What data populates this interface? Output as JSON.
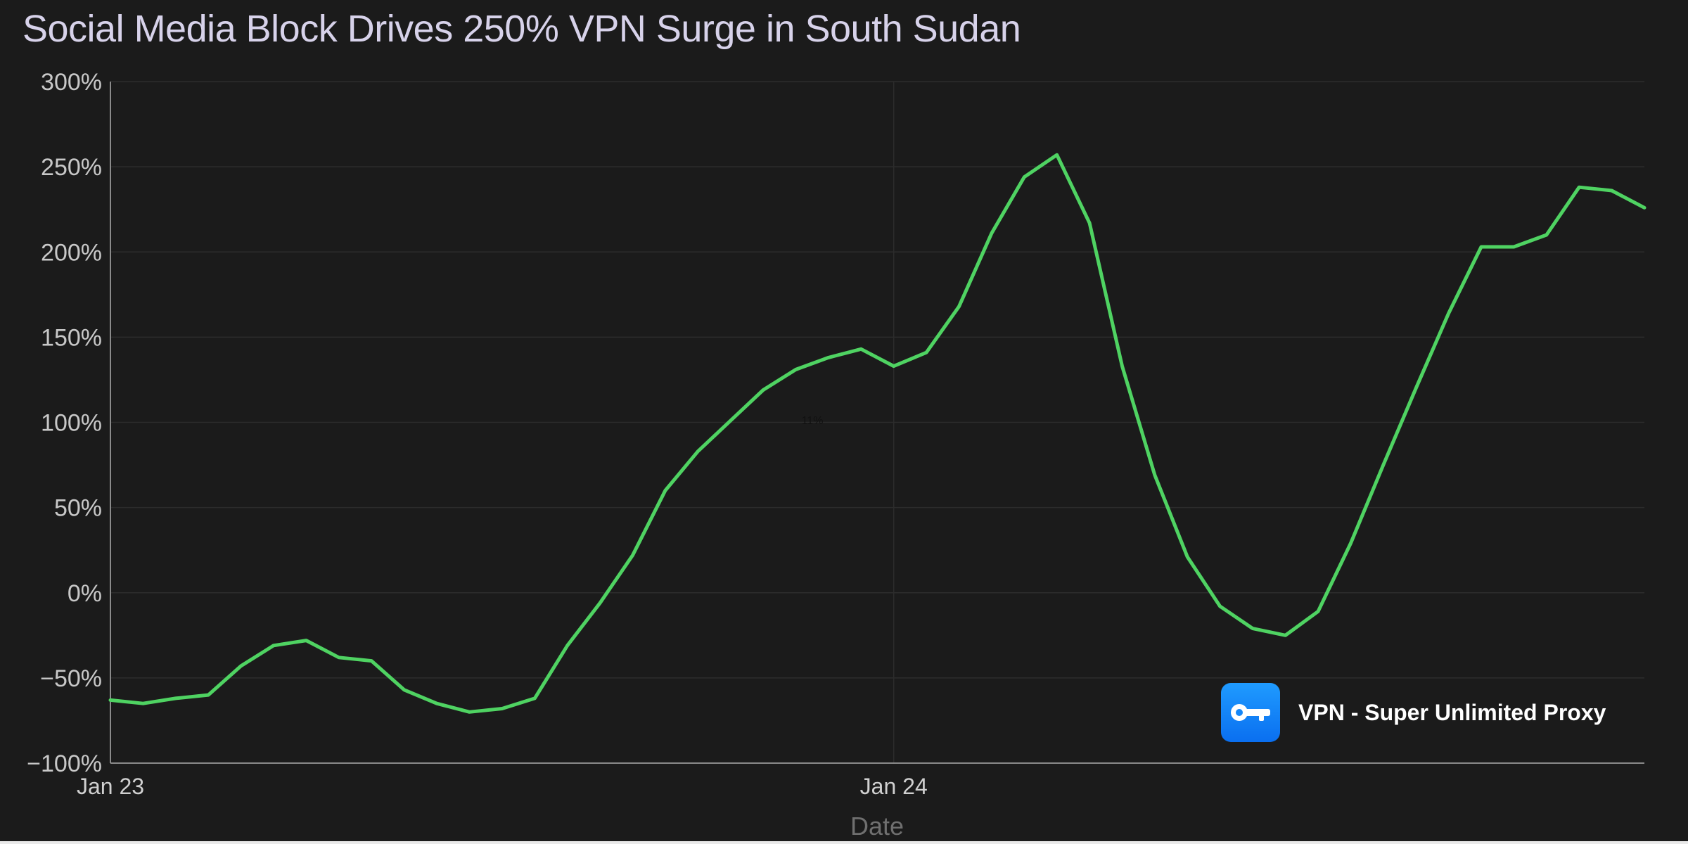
{
  "chart_data": {
    "type": "line",
    "title": "Social Media Block Drives 250% VPN Surge in South Sudan",
    "xlabel": "Date",
    "ylabel": "",
    "ylim": [
      -100,
      300
    ],
    "yticks": [
      -100,
      -50,
      0,
      50,
      100,
      150,
      200,
      250,
      300
    ],
    "ytick_labels": [
      "−100%",
      "−50%",
      "0%",
      "50%",
      "100%",
      "150%",
      "200%",
      "250%",
      "300%"
    ],
    "xticks": [
      {
        "label": "Jan 23",
        "x": 0
      },
      {
        "label": "Jan 24",
        "x": 24
      }
    ],
    "xlim": [
      0,
      47
    ],
    "grid": true,
    "annotation": "11%",
    "line_color": "#4fd362",
    "series": [
      {
        "values": [
          {
            "x": 0,
            "y": -63
          },
          {
            "x": 1,
            "y": -65
          },
          {
            "x": 2,
            "y": -62
          },
          {
            "x": 3,
            "y": -60
          },
          {
            "x": 4,
            "y": -43
          },
          {
            "x": 5,
            "y": -31
          },
          {
            "x": 6,
            "y": -28
          },
          {
            "x": 7,
            "y": -38
          },
          {
            "x": 8,
            "y": -40
          },
          {
            "x": 9,
            "y": -57
          },
          {
            "x": 10,
            "y": -65
          },
          {
            "x": 11,
            "y": -70
          },
          {
            "x": 12,
            "y": -68
          },
          {
            "x": 13,
            "y": -62
          },
          {
            "x": 14,
            "y": -31
          },
          {
            "x": 15,
            "y": -6
          },
          {
            "x": 16,
            "y": 22
          },
          {
            "x": 17,
            "y": 60
          },
          {
            "x": 18,
            "y": 83
          },
          {
            "x": 19,
            "y": 101
          },
          {
            "x": 20,
            "y": 119
          },
          {
            "x": 21,
            "y": 131
          },
          {
            "x": 22,
            "y": 138
          },
          {
            "x": 23,
            "y": 143
          },
          {
            "x": 24,
            "y": 133
          },
          {
            "x": 25,
            "y": 141
          },
          {
            "x": 26,
            "y": 168
          },
          {
            "x": 27,
            "y": 211
          },
          {
            "x": 28,
            "y": 244
          },
          {
            "x": 29,
            "y": 257
          },
          {
            "x": 30,
            "y": 217
          },
          {
            "x": 31,
            "y": 133
          },
          {
            "x": 32,
            "y": 69
          },
          {
            "x": 33,
            "y": 21
          },
          {
            "x": 34,
            "y": -8
          },
          {
            "x": 35,
            "y": -21
          },
          {
            "x": 36,
            "y": -25
          },
          {
            "x": 37,
            "y": -11
          },
          {
            "x": 38,
            "y": 29
          },
          {
            "x": 39,
            "y": 75
          },
          {
            "x": 40,
            "y": 120
          },
          {
            "x": 41,
            "y": 164
          },
          {
            "x": 42,
            "y": 203
          },
          {
            "x": 43,
            "y": 203
          },
          {
            "x": 44,
            "y": 210
          },
          {
            "x": 45,
            "y": 238
          },
          {
            "x": 46,
            "y": 236
          },
          {
            "x": 47,
            "y": 226
          }
        ]
      }
    ]
  },
  "badge": {
    "label": "VPN - Super Unlimited Proxy",
    "icon": "key-icon",
    "icon_color": "#1486f8"
  },
  "colors": {
    "background": "#1b1b1b",
    "grid": "#2c2c2c",
    "axis": "#8a8a8a",
    "line": "#4fd362"
  }
}
